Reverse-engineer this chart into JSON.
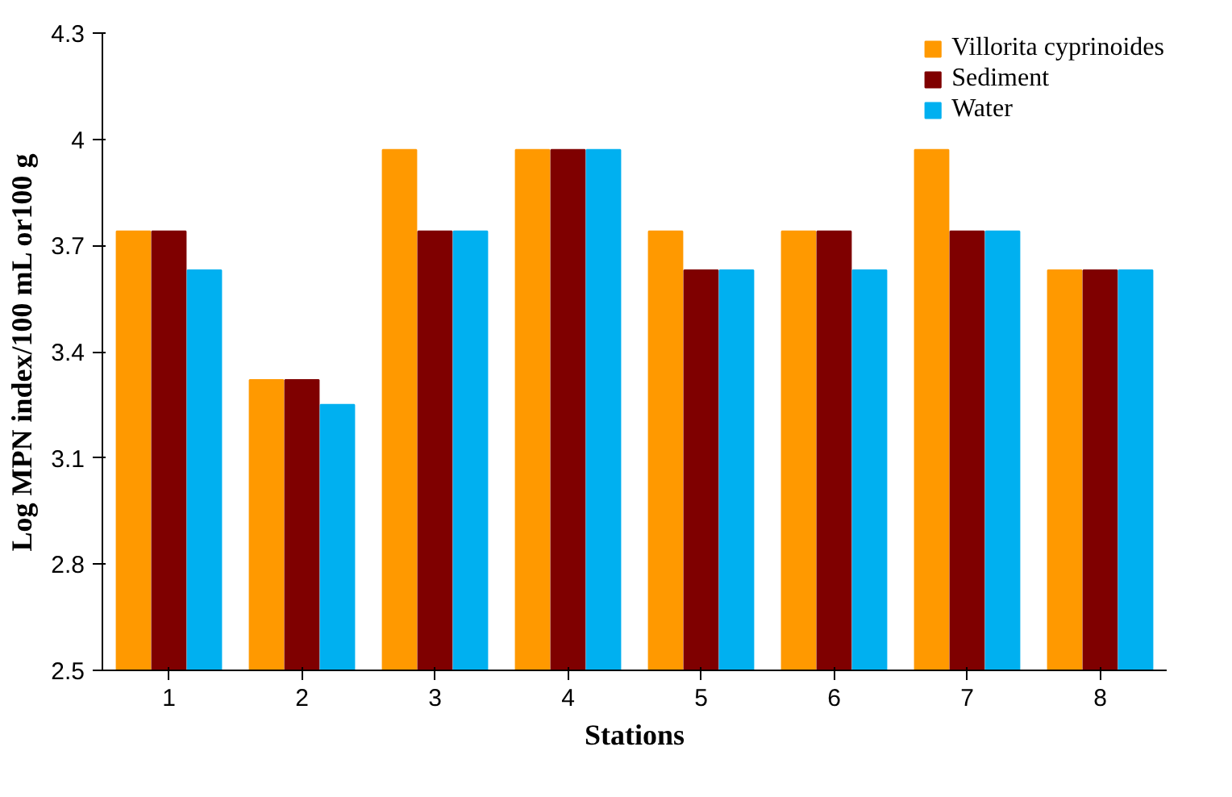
{
  "chart_data": {
    "type": "bar",
    "xlabel": "Stations",
    "ylabel": "Log MPN index/100 mL or100 g",
    "categories": [
      "1",
      "2",
      "3",
      "4",
      "5",
      "6",
      "7",
      "8"
    ],
    "series": [
      {
        "name": "Villorita cyprinoides",
        "color": "#ff9900",
        "values": [
          3.74,
          3.32,
          3.97,
          3.97,
          3.74,
          3.74,
          3.97,
          3.63
        ]
      },
      {
        "name": "Sediment",
        "color": "#7f0000",
        "values": [
          3.74,
          3.32,
          3.74,
          3.97,
          3.63,
          3.74,
          3.74,
          3.63
        ]
      },
      {
        "name": "Water",
        "color": "#00b0f0",
        "values": [
          3.63,
          3.25,
          3.74,
          3.97,
          3.63,
          3.63,
          3.74,
          3.63
        ]
      }
    ],
    "ylim": [
      2.5,
      4.3
    ],
    "yticks": [
      2.5,
      2.8,
      3.1,
      3.4,
      3.7,
      4,
      4.3
    ],
    "grid": false,
    "legend": "top right"
  }
}
